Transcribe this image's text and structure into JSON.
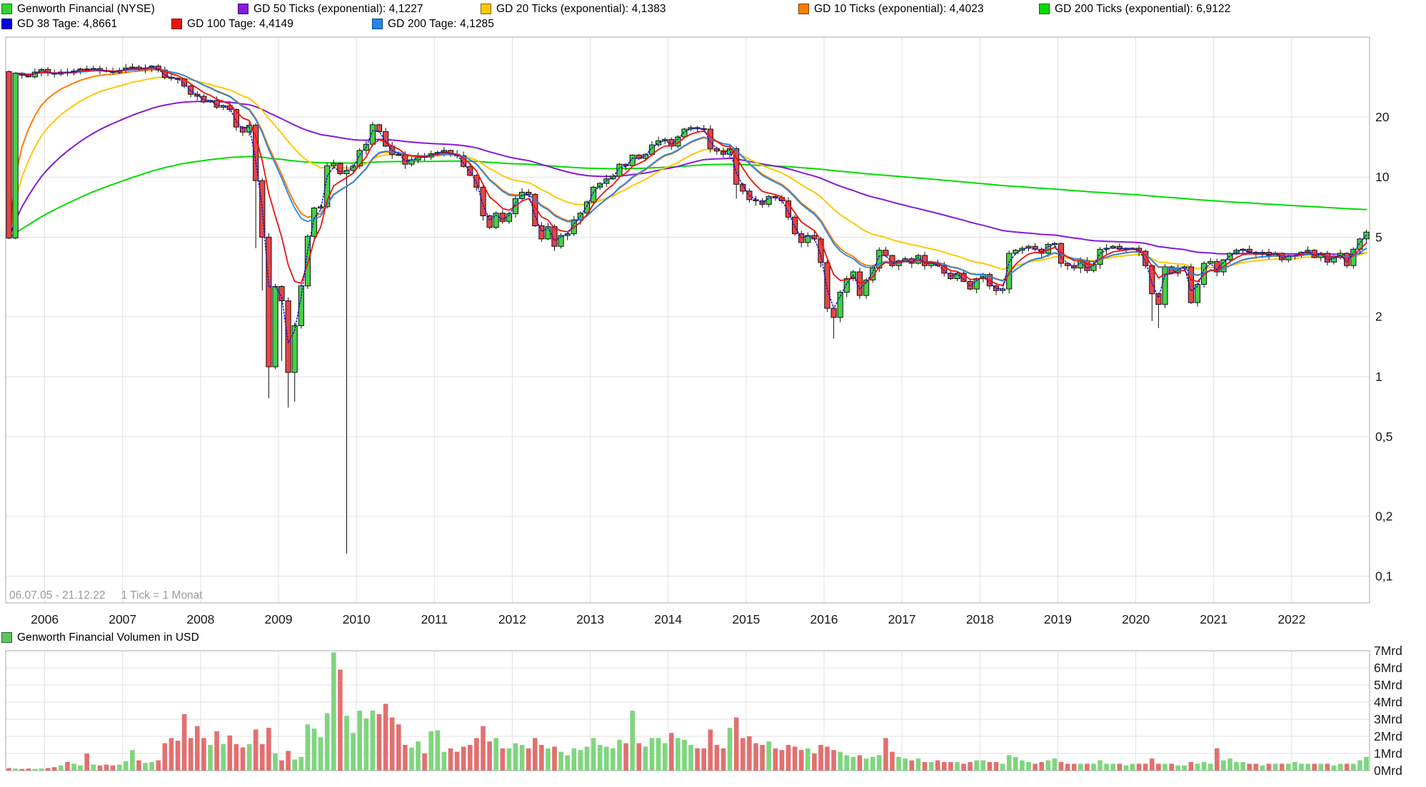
{
  "legend": {
    "row1": [
      {
        "label": "Genworth Financial (NYSE)",
        "color": "#33d433"
      },
      {
        "label": "GD 50 Ticks (exponential): 4,1227",
        "color": "#8519dd"
      },
      {
        "label": "GD 20 Ticks (exponential): 4,1383",
        "color": "#ffc800"
      },
      {
        "label": "GD 10 Ticks (exponential): 4,4023",
        "color": "#ff7c00"
      },
      {
        "label": "GD 200 Ticks (exponential): 6,9122",
        "color": "#00dc00"
      }
    ],
    "row2": [
      {
        "label": "GD 38 Tage: 4,8661",
        "color": "#0000e0"
      },
      {
        "label": "GD 100 Tage: 4,4149",
        "color": "#ee1111"
      },
      {
        "label": "GD 200 Tage: 4,1285",
        "color": "#2288ee"
      }
    ]
  },
  "footer": {
    "date_range": "06.07.05 - 21.12.22",
    "tick_note": "1 Tick = 1 Monat"
  },
  "volume_legend": {
    "label": "Genworth Financial Volumen in USD",
    "color": "#5ec45e"
  },
  "chart_data": [
    {
      "type": "candlestick",
      "title": "Genworth Financial (NYSE)",
      "scale": "log",
      "interval": "1 month",
      "start": "2005-07",
      "end": "2022-12",
      "grid": true,
      "price_ticks": [
        {
          "value": 20,
          "label": "20"
        },
        {
          "value": 10,
          "label": "10"
        },
        {
          "value": 5,
          "label": "5"
        },
        {
          "value": 2,
          "label": "2"
        },
        {
          "value": 1,
          "label": "1"
        },
        {
          "value": 0.5,
          "label": "0,5"
        },
        {
          "value": 0.2,
          "label": "0,2"
        },
        {
          "value": 0.1,
          "label": "0,1"
        }
      ],
      "years": [
        "2006",
        "2007",
        "2008",
        "2009",
        "2010",
        "2011",
        "2012",
        "2013",
        "2014",
        "2015",
        "2016",
        "2017",
        "2018",
        "2019",
        "2020",
        "2021",
        "2022"
      ],
      "candle_up_color": "#44d144",
      "candle_down_color": "#e94444",
      "first_open": 33.8,
      "closes": [
        4.95,
        33.2,
        32.4,
        31.8,
        33.6,
        34.6,
        33.3,
        32.8,
        33.6,
        33.2,
        34.0,
        34.8,
        34.4,
        35.0,
        34.2,
        33.8,
        33.5,
        34.2,
        35.2,
        35.6,
        34.6,
        35.2,
        36.0,
        34.4,
        31.6,
        31.2,
        31.0,
        28.6,
        26.0,
        25.4,
        23.8,
        24.2,
        22.4,
        22.8,
        21.8,
        17.8,
        16.8,
        18.2,
        9.6,
        5.0,
        1.12,
        2.83,
        2.4,
        1.05,
        1.8,
        2.85,
        5.05,
        7.0,
        7.1,
        11.4,
        11.7,
        10.4,
        10.8,
        11.35,
        13.6,
        14.6,
        18.3,
        16.9,
        14.3,
        13.0,
        12.9,
        11.6,
        12.2,
        12.7,
        12.6,
        13.1,
        13.3,
        13.6,
        13.0,
        12.8,
        11.3,
        10.2,
        8.9,
        6.4,
        5.6,
        6.6,
        6.0,
        6.55,
        7.8,
        8.4,
        8.2,
        5.7,
        4.9,
        5.65,
        4.5,
        5.1,
        5.2,
        6.1,
        6.6,
        7.5,
        8.9,
        9.3,
        9.8,
        10.1,
        11.6,
        11.4,
        12.9,
        12.4,
        13.0,
        14.5,
        15.2,
        15.45,
        14.3,
        15.9,
        17.4,
        17.7,
        17.5,
        17.4,
        13.9,
        13.5,
        13.0,
        13.9,
        9.2,
        8.5,
        7.7,
        7.6,
        7.3,
        8.0,
        7.9,
        7.6,
        6.3,
        5.2,
        4.7,
        5.1,
        4.9,
        3.73,
        2.2,
        1.98,
        2.65,
        3.1,
        3.35,
        2.55,
        3.05,
        3.5,
        4.3,
        4.05,
        3.6,
        3.8,
        3.9,
        3.7,
        4.05,
        3.6,
        3.7,
        3.6,
        3.3,
        3.1,
        3.3,
        3.0,
        2.75,
        3.1,
        3.25,
        2.85,
        2.7,
        2.75,
        4.15,
        4.3,
        4.4,
        4.5,
        4.35,
        4.15,
        4.6,
        4.65,
        3.7,
        3.6,
        3.5,
        3.8,
        3.4,
        3.65,
        4.35,
        4.4,
        4.5,
        4.35,
        4.4,
        4.4,
        4.25,
        3.6,
        2.6,
        2.3,
        3.55,
        3.3,
        3.5,
        3.55,
        2.35,
        2.9,
        3.7,
        3.78,
        3.35,
        3.85,
        4.15,
        4.3,
        4.35,
        4.2,
        4.1,
        4.2,
        4.05,
        4.15,
        3.85,
        4.05,
        4.05,
        4.2,
        4.3,
        3.95,
        4.15,
        3.75,
        3.95,
        4.15,
        3.6,
        4.35,
        4.9,
        5.3
      ],
      "wick_overrides": {
        "2005-07": {
          "h": 34.2,
          "l": 4.9
        },
        "2008-09": {
          "l": 4.4
        },
        "2008-10": {
          "l": 2.7
        },
        "2008-11": {
          "l": 0.78
        },
        "2009-01": {
          "l": 1.2
        },
        "2009-02": {
          "l": 0.7
        },
        "2009-03": {
          "l": 0.75
        },
        "2009-11": {
          "h": 11.5,
          "l": 0.13
        },
        "2010-03": {
          "h": 18.9
        },
        "2011-02": {
          "h": 14.2
        },
        "2014-11": {
          "l": 7.8
        },
        "2016-02": {
          "l": 1.55
        },
        "2020-03": {
          "l": 1.9
        },
        "2020-04": {
          "l": 1.75
        },
        "2022-12": {
          "h": 5.45
        }
      },
      "tick_averages": [
        {
          "name": "GD 200 Ticks (exponential)",
          "current_value": "6,9122",
          "period": 200,
          "color": "#00dc00"
        },
        {
          "name": "GD 50 Ticks (exponential)",
          "current_value": "4,1227",
          "period": 50,
          "color": "#8519dd"
        },
        {
          "name": "GD 20 Ticks (exponential)",
          "current_value": "4,1383",
          "period": 20,
          "color": "#ffc800"
        },
        {
          "name": "GD 10 Ticks (exponential)",
          "current_value": "4,4023",
          "period": 10,
          "color": "#ff7c00"
        }
      ],
      "day_averages": [
        {
          "name": "GD 200 Tage",
          "current_value": "4,1285",
          "period_days": 200,
          "color": "#2288ee",
          "dash": ""
        },
        {
          "name": "GD 100 Tage",
          "current_value": "4,4149",
          "period_days": 100,
          "color": "#ee1111",
          "dash": ""
        },
        {
          "name": "GD 38 Tage",
          "current_value": "4,8661",
          "period_days": 38,
          "color": "#1515cc",
          "dash": "1.6 2.6"
        }
      ]
    },
    {
      "type": "bar",
      "title": "Genworth Financial Volumen in USD",
      "unit": "Mrd",
      "bar_up_color": "#7ed67e",
      "bar_down_color": "#e27070",
      "volume_ticks": [
        {
          "value": 7,
          "label": "7Mrd"
        },
        {
          "value": 6,
          "label": "6Mrd"
        },
        {
          "value": 5,
          "label": "5Mrd"
        },
        {
          "value": 4,
          "label": "4Mrd"
        },
        {
          "value": 3,
          "label": "3Mrd"
        },
        {
          "value": 2,
          "label": "2Mrd"
        },
        {
          "value": 1,
          "label": "1Mrd"
        },
        {
          "value": 0,
          "label": "0Mrd"
        }
      ],
      "values_mrd": [
        0.15,
        0.12,
        0.1,
        0.12,
        0.1,
        0.12,
        0.15,
        0.2,
        0.3,
        0.5,
        0.4,
        0.3,
        1.0,
        0.35,
        0.3,
        0.35,
        0.3,
        0.35,
        0.55,
        1.2,
        0.6,
        0.45,
        0.5,
        0.6,
        1.6,
        1.9,
        1.75,
        3.3,
        1.9,
        2.6,
        1.9,
        1.5,
        2.3,
        1.55,
        2.05,
        1.55,
        1.35,
        1.55,
        2.4,
        1.55,
        2.5,
        1.0,
        0.6,
        1.15,
        0.65,
        0.8,
        2.7,
        2.45,
        1.95,
        3.35,
        6.9,
        5.9,
        3.2,
        2.2,
        3.5,
        3.05,
        3.5,
        3.3,
        3.9,
        3.1,
        2.7,
        1.5,
        1.35,
        1.7,
        1.0,
        2.3,
        2.35,
        1.1,
        1.3,
        1.1,
        1.4,
        1.5,
        1.9,
        2.6,
        1.7,
        1.9,
        1.3,
        1.3,
        1.6,
        1.5,
        1.3,
        1.9,
        1.5,
        1.3,
        1.4,
        1.1,
        0.9,
        1.3,
        1.2,
        1.4,
        1.9,
        1.5,
        1.4,
        1.3,
        1.8,
        1.6,
        3.5,
        1.6,
        1.4,
        1.9,
        1.9,
        1.6,
        2.2,
        1.9,
        1.8,
        1.5,
        1.3,
        1.3,
        2.4,
        1.5,
        1.3,
        2.5,
        3.1,
        1.9,
        2.0,
        1.6,
        1.5,
        1.7,
        1.3,
        1.2,
        1.5,
        1.4,
        1.2,
        1.3,
        1.0,
        1.5,
        1.4,
        1.2,
        1.1,
        0.9,
        0.8,
        0.9,
        0.7,
        0.8,
        0.9,
        1.9,
        1.1,
        0.8,
        0.7,
        0.6,
        0.7,
        0.5,
        0.5,
        0.6,
        0.5,
        0.5,
        0.5,
        0.4,
        0.5,
        0.6,
        0.6,
        0.5,
        0.5,
        0.4,
        0.9,
        0.8,
        0.6,
        0.5,
        0.4,
        0.5,
        0.6,
        0.7,
        0.5,
        0.4,
        0.4,
        0.4,
        0.4,
        0.4,
        0.6,
        0.4,
        0.4,
        0.4,
        0.3,
        0.4,
        0.4,
        0.4,
        0.7,
        0.4,
        0.4,
        0.4,
        0.3,
        0.3,
        0.5,
        0.4,
        0.5,
        0.4,
        1.3,
        0.6,
        0.7,
        0.5,
        0.5,
        0.4,
        0.4,
        0.3,
        0.4,
        0.4,
        0.4,
        0.4,
        0.5,
        0.4,
        0.4,
        0.4,
        0.4,
        0.4,
        0.3,
        0.4,
        0.4,
        0.4,
        0.6,
        0.8
      ]
    }
  ]
}
